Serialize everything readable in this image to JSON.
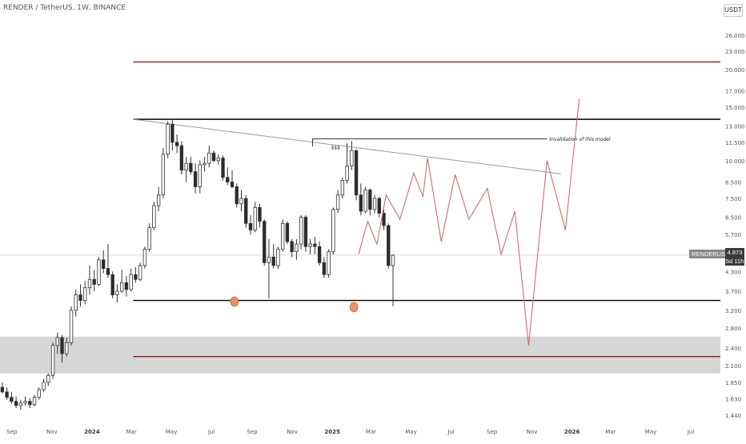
{
  "header": {
    "title": "RENDER / TetherUS, 1W, BINANCE",
    "currency_button": "USDT"
  },
  "price_scale": {
    "symbol_badge": "RENDERUSDT",
    "last_price": "4.873",
    "countdown": "5d 11h"
  },
  "colors": {
    "candle_up": "#ffffff",
    "candle_down": "#2b2b2b",
    "wick": "#333333",
    "horizontal_black": "#000000",
    "horizontal_red": "#8b1a1a",
    "projection": "#c97070",
    "trendline": "#9a9a9a",
    "zone_fill": "#d6d6d6",
    "marker": "#e8916a"
  },
  "chart_data": {
    "type": "candlestick",
    "y_scale": "log",
    "y_range": [
      1.38,
      29.0
    ],
    "y_ticks": [
      "26.000",
      "23.000",
      "20.000",
      "17.000",
      "15.000",
      "13.000",
      "11.500",
      "10.000",
      "8.500",
      "7.500",
      "6.500",
      "5.700",
      "5.000",
      "4.300",
      "3.700",
      "3.200",
      "2.800",
      "2.400",
      "2.100",
      "1.850",
      "1.630",
      "1.440"
    ],
    "x_range": [
      "2023-08-14",
      "2026-08-15"
    ],
    "x_ticks": [
      {
        "date": "2023-09-01",
        "label": "Sep"
      },
      {
        "date": "2023-11-01",
        "label": "Nov"
      },
      {
        "date": "2024-01-01",
        "label": "2024"
      },
      {
        "date": "2024-03-01",
        "label": "Mar"
      },
      {
        "date": "2024-05-01",
        "label": "May"
      },
      {
        "date": "2024-07-01",
        "label": "Jul"
      },
      {
        "date": "2024-09-01",
        "label": "Sep"
      },
      {
        "date": "2024-11-01",
        "label": "Nov"
      },
      {
        "date": "2025-01-01",
        "label": "2025"
      },
      {
        "date": "2025-03-01",
        "label": "Mar"
      },
      {
        "date": "2025-05-01",
        "label": "May"
      },
      {
        "date": "2025-07-01",
        "label": "Jul"
      },
      {
        "date": "2025-09-01",
        "label": "Sep"
      },
      {
        "date": "2025-11-01",
        "label": "Nov"
      },
      {
        "date": "2026-01-01",
        "label": "2026"
      },
      {
        "date": "2026-03-01",
        "label": "Mar"
      },
      {
        "date": "2026-05-01",
        "label": "May"
      },
      {
        "date": "2026-07-01",
        "label": "Jul"
      }
    ],
    "candles_start": "2023-08-14",
    "candles_interval_days": 7,
    "candles": [
      [
        1.78,
        1.85,
        1.7,
        1.72
      ],
      [
        1.72,
        1.78,
        1.62,
        1.65
      ],
      [
        1.65,
        1.72,
        1.57,
        1.6
      ],
      [
        1.6,
        1.66,
        1.52,
        1.55
      ],
      [
        1.55,
        1.62,
        1.5,
        1.58
      ],
      [
        1.58,
        1.66,
        1.55,
        1.6
      ],
      [
        1.6,
        1.64,
        1.52,
        1.56
      ],
      [
        1.56,
        1.68,
        1.54,
        1.65
      ],
      [
        1.65,
        1.78,
        1.62,
        1.75
      ],
      [
        1.75,
        1.9,
        1.72,
        1.85
      ],
      [
        1.85,
        1.98,
        1.8,
        1.95
      ],
      [
        1.95,
        2.5,
        1.9,
        2.45
      ],
      [
        2.45,
        2.7,
        2.3,
        2.6
      ],
      [
        2.6,
        2.65,
        2.15,
        2.3
      ],
      [
        2.3,
        2.6,
        2.25,
        2.5
      ],
      [
        2.5,
        3.3,
        2.45,
        3.2
      ],
      [
        3.2,
        3.75,
        3.05,
        3.6
      ],
      [
        3.6,
        3.9,
        3.3,
        3.45
      ],
      [
        3.45,
        4.0,
        3.35,
        3.8
      ],
      [
        3.8,
        4.5,
        3.6,
        4.05
      ],
      [
        4.05,
        4.35,
        3.7,
        3.9
      ],
      [
        3.9,
        4.8,
        3.85,
        4.7
      ],
      [
        4.7,
        5.05,
        4.25,
        4.4
      ],
      [
        4.4,
        5.3,
        4.1,
        4.2
      ],
      [
        4.2,
        4.3,
        3.5,
        3.6
      ],
      [
        3.6,
        3.9,
        3.4,
        3.7
      ],
      [
        3.7,
        4.35,
        3.65,
        3.95
      ],
      [
        3.95,
        4.15,
        3.55,
        3.75
      ],
      [
        3.75,
        4.4,
        3.7,
        4.2
      ],
      [
        4.2,
        4.45,
        3.95,
        4.05
      ],
      [
        4.05,
        4.6,
        4.0,
        4.5
      ],
      [
        4.5,
        5.2,
        4.4,
        5.1
      ],
      [
        5.1,
        6.2,
        5.0,
        6.0
      ],
      [
        6.0,
        7.3,
        5.9,
        7.1
      ],
      [
        7.1,
        8.2,
        6.8,
        7.7
      ],
      [
        7.7,
        11.0,
        7.5,
        10.5
      ],
      [
        10.5,
        13.5,
        10.2,
        13.2
      ],
      [
        13.2,
        13.7,
        10.8,
        11.5
      ],
      [
        11.5,
        12.2,
        10.6,
        11.2
      ],
      [
        11.2,
        11.6,
        9.0,
        9.3
      ],
      [
        9.3,
        10.3,
        8.5,
        9.8
      ],
      [
        9.8,
        10.3,
        9.0,
        9.2
      ],
      [
        9.2,
        9.8,
        7.8,
        8.2
      ],
      [
        8.2,
        10.0,
        7.8,
        9.7
      ],
      [
        9.7,
        10.3,
        9.2,
        9.8
      ],
      [
        9.8,
        11.2,
        9.5,
        10.6
      ],
      [
        10.6,
        10.8,
        9.9,
        10.0
      ],
      [
        10.0,
        10.5,
        9.7,
        10.2
      ],
      [
        10.2,
        10.4,
        8.6,
        8.8
      ],
      [
        8.8,
        9.5,
        8.3,
        8.5
      ],
      [
        8.5,
        9.3,
        8.1,
        8.2
      ],
      [
        8.2,
        8.4,
        7.0,
        7.2
      ],
      [
        7.2,
        8.0,
        6.8,
        7.5
      ],
      [
        7.5,
        7.7,
        6.0,
        6.2
      ],
      [
        6.2,
        6.6,
        5.7,
        5.9
      ],
      [
        5.9,
        7.3,
        5.8,
        7.0
      ],
      [
        7.0,
        7.2,
        6.0,
        6.3
      ],
      [
        6.3,
        6.4,
        4.5,
        4.6
      ],
      [
        4.6,
        5.5,
        3.5,
        4.8
      ],
      [
        4.8,
        5.3,
        4.4,
        4.5
      ],
      [
        4.5,
        5.2,
        4.4,
        5.1
      ],
      [
        5.1,
        6.4,
        5.0,
        6.2
      ],
      [
        6.2,
        6.3,
        5.3,
        5.4
      ],
      [
        5.4,
        5.5,
        4.8,
        5.0
      ],
      [
        5.0,
        5.5,
        4.7,
        5.3
      ],
      [
        5.3,
        6.6,
        5.1,
        6.5
      ],
      [
        6.5,
        6.6,
        5.0,
        5.2
      ],
      [
        5.2,
        5.5,
        4.9,
        5.3
      ],
      [
        5.3,
        5.6,
        4.9,
        5.2
      ],
      [
        5.2,
        5.4,
        4.5,
        4.6
      ],
      [
        4.6,
        4.8,
        4.1,
        4.2
      ],
      [
        4.2,
        5.1,
        4.1,
        5.0
      ],
      [
        5.0,
        7.0,
        4.9,
        6.9
      ],
      [
        6.9,
        8.0,
        6.7,
        7.7
      ],
      [
        7.7,
        8.8,
        7.5,
        8.6
      ],
      [
        8.6,
        11.4,
        8.4,
        9.6
      ],
      [
        9.6,
        11.6,
        9.3,
        10.8
      ],
      [
        10.8,
        10.9,
        7.4,
        7.7
      ],
      [
        7.7,
        8.4,
        6.6,
        6.8
      ],
      [
        6.8,
        8.2,
        6.7,
        8.0
      ],
      [
        8.0,
        8.1,
        6.6,
        6.9
      ],
      [
        6.9,
        7.7,
        6.7,
        7.5
      ],
      [
        7.5,
        7.6,
        6.5,
        6.7
      ],
      [
        6.7,
        6.9,
        5.9,
        6.1
      ],
      [
        6.1,
        6.2,
        4.4,
        4.5
      ],
      [
        4.5,
        4.9,
        3.3,
        4.87
      ]
    ],
    "horizontal_lines": [
      {
        "price": 21.2,
        "color": "red",
        "from": "2024-03-04"
      },
      {
        "price": 13.7,
        "color": "black",
        "from": "2024-03-04"
      },
      {
        "price": 3.45,
        "color": "black",
        "from": "2024-03-04"
      },
      {
        "price": 2.25,
        "color": "red",
        "from": "2024-03-04"
      }
    ],
    "zone": {
      "from": "2023-08-14",
      "to_edge": true,
      "low": 1.98,
      "high": 2.62
    },
    "trendline": {
      "from": [
        "2024-03-04",
        13.7
      ],
      "to": [
        "2025-12-15",
        9.05
      ]
    },
    "annotation_level": {
      "price": 11.8,
      "from": "2024-12-02",
      "step_down_to": 11.15
    },
    "annotations": {
      "invalidation": "Invalidation of this model",
      "liquidity": "$$$"
    },
    "markers": [
      {
        "date": "2024-08-05",
        "price": 3.42
      },
      {
        "date": "2025-02-03",
        "price": 3.28
      }
    ],
    "projection": [
      [
        "2025-02-10",
        4.9
      ],
      [
        "2025-02-24",
        6.3
      ],
      [
        "2025-03-10",
        5.3
      ],
      [
        "2025-03-24",
        7.7
      ],
      [
        "2025-04-14",
        6.4
      ],
      [
        "2025-05-05",
        9.1
      ],
      [
        "2025-05-19",
        7.6
      ],
      [
        "2025-05-26",
        10.2
      ],
      [
        "2025-06-16",
        5.4
      ],
      [
        "2025-07-07",
        9.0
      ],
      [
        "2025-07-28",
        6.4
      ],
      [
        "2025-08-25",
        8.1
      ],
      [
        "2025-09-15",
        4.9
      ],
      [
        "2025-10-06",
        6.8
      ],
      [
        "2025-10-27",
        2.45
      ],
      [
        "2025-11-24",
        10.0
      ],
      [
        "2025-12-22",
        5.9
      ],
      [
        "2026-01-12",
        16.0
      ]
    ],
    "current_price": 4.873
  }
}
